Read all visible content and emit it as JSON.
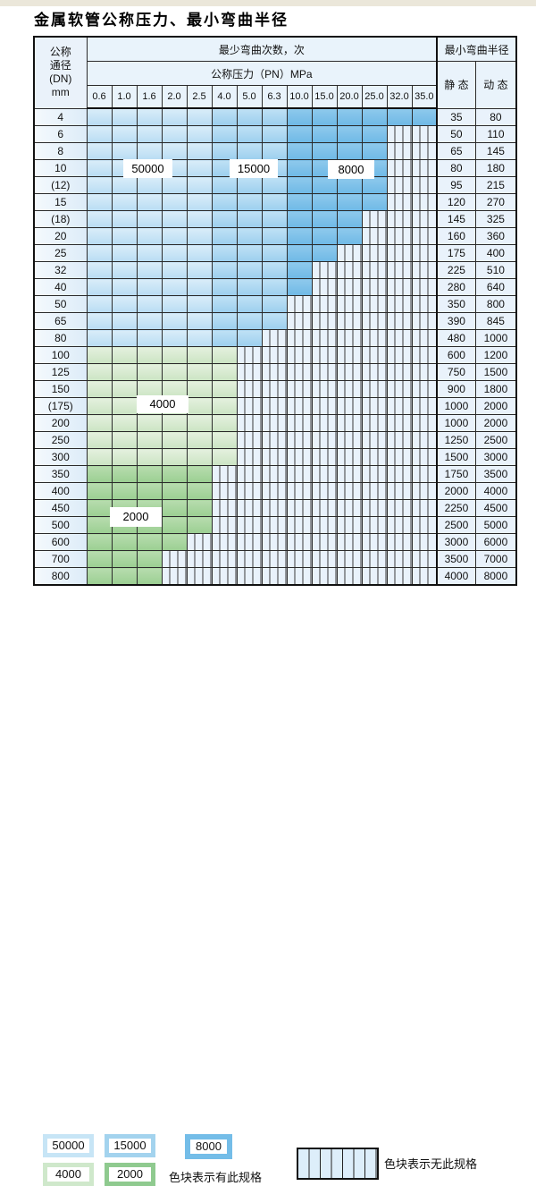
{
  "title": "金属软管公称压力、最小弯曲半径",
  "table": {
    "header": {
      "dn_label_lines": "公称\n通径\n(DN)\nmm",
      "bend_cycles_label": "最少弯曲次数，次",
      "pressure_label": "公称压力（PN）MPa",
      "radius_label": "最小弯曲半径",
      "static_label": "静 态",
      "dynamic_label": "动 态",
      "pressures": [
        "0.6",
        "1.0",
        "1.6",
        "2.0",
        "2.5",
        "4.0",
        "5.0",
        "6.3",
        "10.0",
        "15.0",
        "20.0",
        "25.0",
        "32.0",
        "35.0"
      ]
    },
    "rows": [
      {
        "dn": "4",
        "group": "blue",
        "colored": 14,
        "max_pn": "35.0",
        "static": "35",
        "dynamic": "80"
      },
      {
        "dn": "6",
        "group": "blue",
        "colored": 12,
        "max_pn": "25.0",
        "static": "50",
        "dynamic": "110"
      },
      {
        "dn": "8",
        "group": "blue",
        "colored": 12,
        "max_pn": "25.0",
        "static": "65",
        "dynamic": "145"
      },
      {
        "dn": "10",
        "group": "blue",
        "colored": 12,
        "max_pn": "25.0",
        "static": "80",
        "dynamic": "180"
      },
      {
        "dn": "(12)",
        "group": "blue",
        "colored": 12,
        "max_pn": "25.0",
        "static": "95",
        "dynamic": "215"
      },
      {
        "dn": "15",
        "group": "blue",
        "colored": 12,
        "max_pn": "25.0",
        "static": "120",
        "dynamic": "270"
      },
      {
        "dn": "(18)",
        "group": "blue",
        "colored": 11,
        "max_pn": "20.0",
        "static": "145",
        "dynamic": "325"
      },
      {
        "dn": "20",
        "group": "blue",
        "colored": 11,
        "max_pn": "20.0",
        "static": "160",
        "dynamic": "360"
      },
      {
        "dn": "25",
        "group": "blue",
        "colored": 10,
        "max_pn": "15.0",
        "static": "175",
        "dynamic": "400"
      },
      {
        "dn": "32",
        "group": "blue",
        "colored": 9,
        "max_pn": "10.0",
        "static": "225",
        "dynamic": "510"
      },
      {
        "dn": "40",
        "group": "blue",
        "colored": 9,
        "max_pn": "10.0",
        "static": "280",
        "dynamic": "640"
      },
      {
        "dn": "50",
        "group": "blue",
        "colored": 8,
        "max_pn": "6.3",
        "static": "350",
        "dynamic": "800"
      },
      {
        "dn": "65",
        "group": "blue",
        "colored": 8,
        "max_pn": "6.3",
        "static": "390",
        "dynamic": "845"
      },
      {
        "dn": "80",
        "group": "blue",
        "colored": 7,
        "max_pn": "5.0",
        "static": "480",
        "dynamic": "1000"
      },
      {
        "dn": "100",
        "group": "green_light",
        "colored": 6,
        "max_pn": "4.0",
        "static": "600",
        "dynamic": "1200"
      },
      {
        "dn": "125",
        "group": "green_light",
        "colored": 6,
        "max_pn": "4.0",
        "static": "750",
        "dynamic": "1500"
      },
      {
        "dn": "150",
        "group": "green_light",
        "colored": 6,
        "max_pn": "4.0",
        "static": "900",
        "dynamic": "1800"
      },
      {
        "dn": "(175)",
        "group": "green_light",
        "colored": 6,
        "max_pn": "4.0",
        "static": "1000",
        "dynamic": "2000"
      },
      {
        "dn": "200",
        "group": "green_light",
        "colored": 6,
        "max_pn": "4.0",
        "static": "1000",
        "dynamic": "2000"
      },
      {
        "dn": "250",
        "group": "green_light",
        "colored": 6,
        "max_pn": "4.0",
        "static": "1250",
        "dynamic": "2500"
      },
      {
        "dn": "300",
        "group": "green_light",
        "colored": 6,
        "max_pn": "4.0",
        "static": "1500",
        "dynamic": "3000"
      },
      {
        "dn": "350",
        "group": "green_dark",
        "colored": 5,
        "max_pn": "2.5",
        "static": "1750",
        "dynamic": "3500"
      },
      {
        "dn": "400",
        "group": "green_dark",
        "colored": 5,
        "max_pn": "2.5",
        "static": "2000",
        "dynamic": "4000"
      },
      {
        "dn": "450",
        "group": "green_dark",
        "colored": 5,
        "max_pn": "2.5",
        "static": "2250",
        "dynamic": "4500"
      },
      {
        "dn": "500",
        "group": "green_dark",
        "colored": 5,
        "max_pn": "2.5",
        "static": "2500",
        "dynamic": "5000"
      },
      {
        "dn": "600",
        "group": "green_dark",
        "colored": 4,
        "max_pn": "2.0",
        "static": "3000",
        "dynamic": "6000"
      },
      {
        "dn": "700",
        "group": "green_dark",
        "colored": 3,
        "max_pn": "1.6",
        "static": "3500",
        "dynamic": "7000"
      },
      {
        "dn": "800",
        "group": "green_dark",
        "colored": 3,
        "max_pn": "1.6",
        "static": "4000",
        "dynamic": "8000"
      }
    ]
  },
  "zones": {
    "blue_light_through_col": 5,
    "blue_medium_through_col": 8,
    "blue_light_cycles": "50000",
    "blue_medium_cycles": "15000",
    "blue_dark_cycles": "8000",
    "green_light_cycles": "4000",
    "green_dark_cycles": "2000"
  },
  "zone_labels": {
    "z50000": "50000",
    "z15000": "15000",
    "z8000": "8000",
    "z4000": "4000",
    "z2000": "2000"
  },
  "legend": {
    "sw_50000": "50000",
    "sw_15000": "15000",
    "sw_8000": "8000",
    "sw_4000": "4000",
    "sw_2000": "2000",
    "available_note": "色块表示有此规格",
    "unavailable_note": "色块表示无此规格"
  },
  "colors": {
    "blue_light": "#c9e5f6",
    "blue_medium": "#a5d4ef",
    "blue_dark": "#79bfe8",
    "green_light": "#d6ead0",
    "green_dark": "#a0d098",
    "hatch_bg": "#e9f2fb",
    "grid_line": "#2b2b2b",
    "header_bg": "#e9f3fb"
  }
}
